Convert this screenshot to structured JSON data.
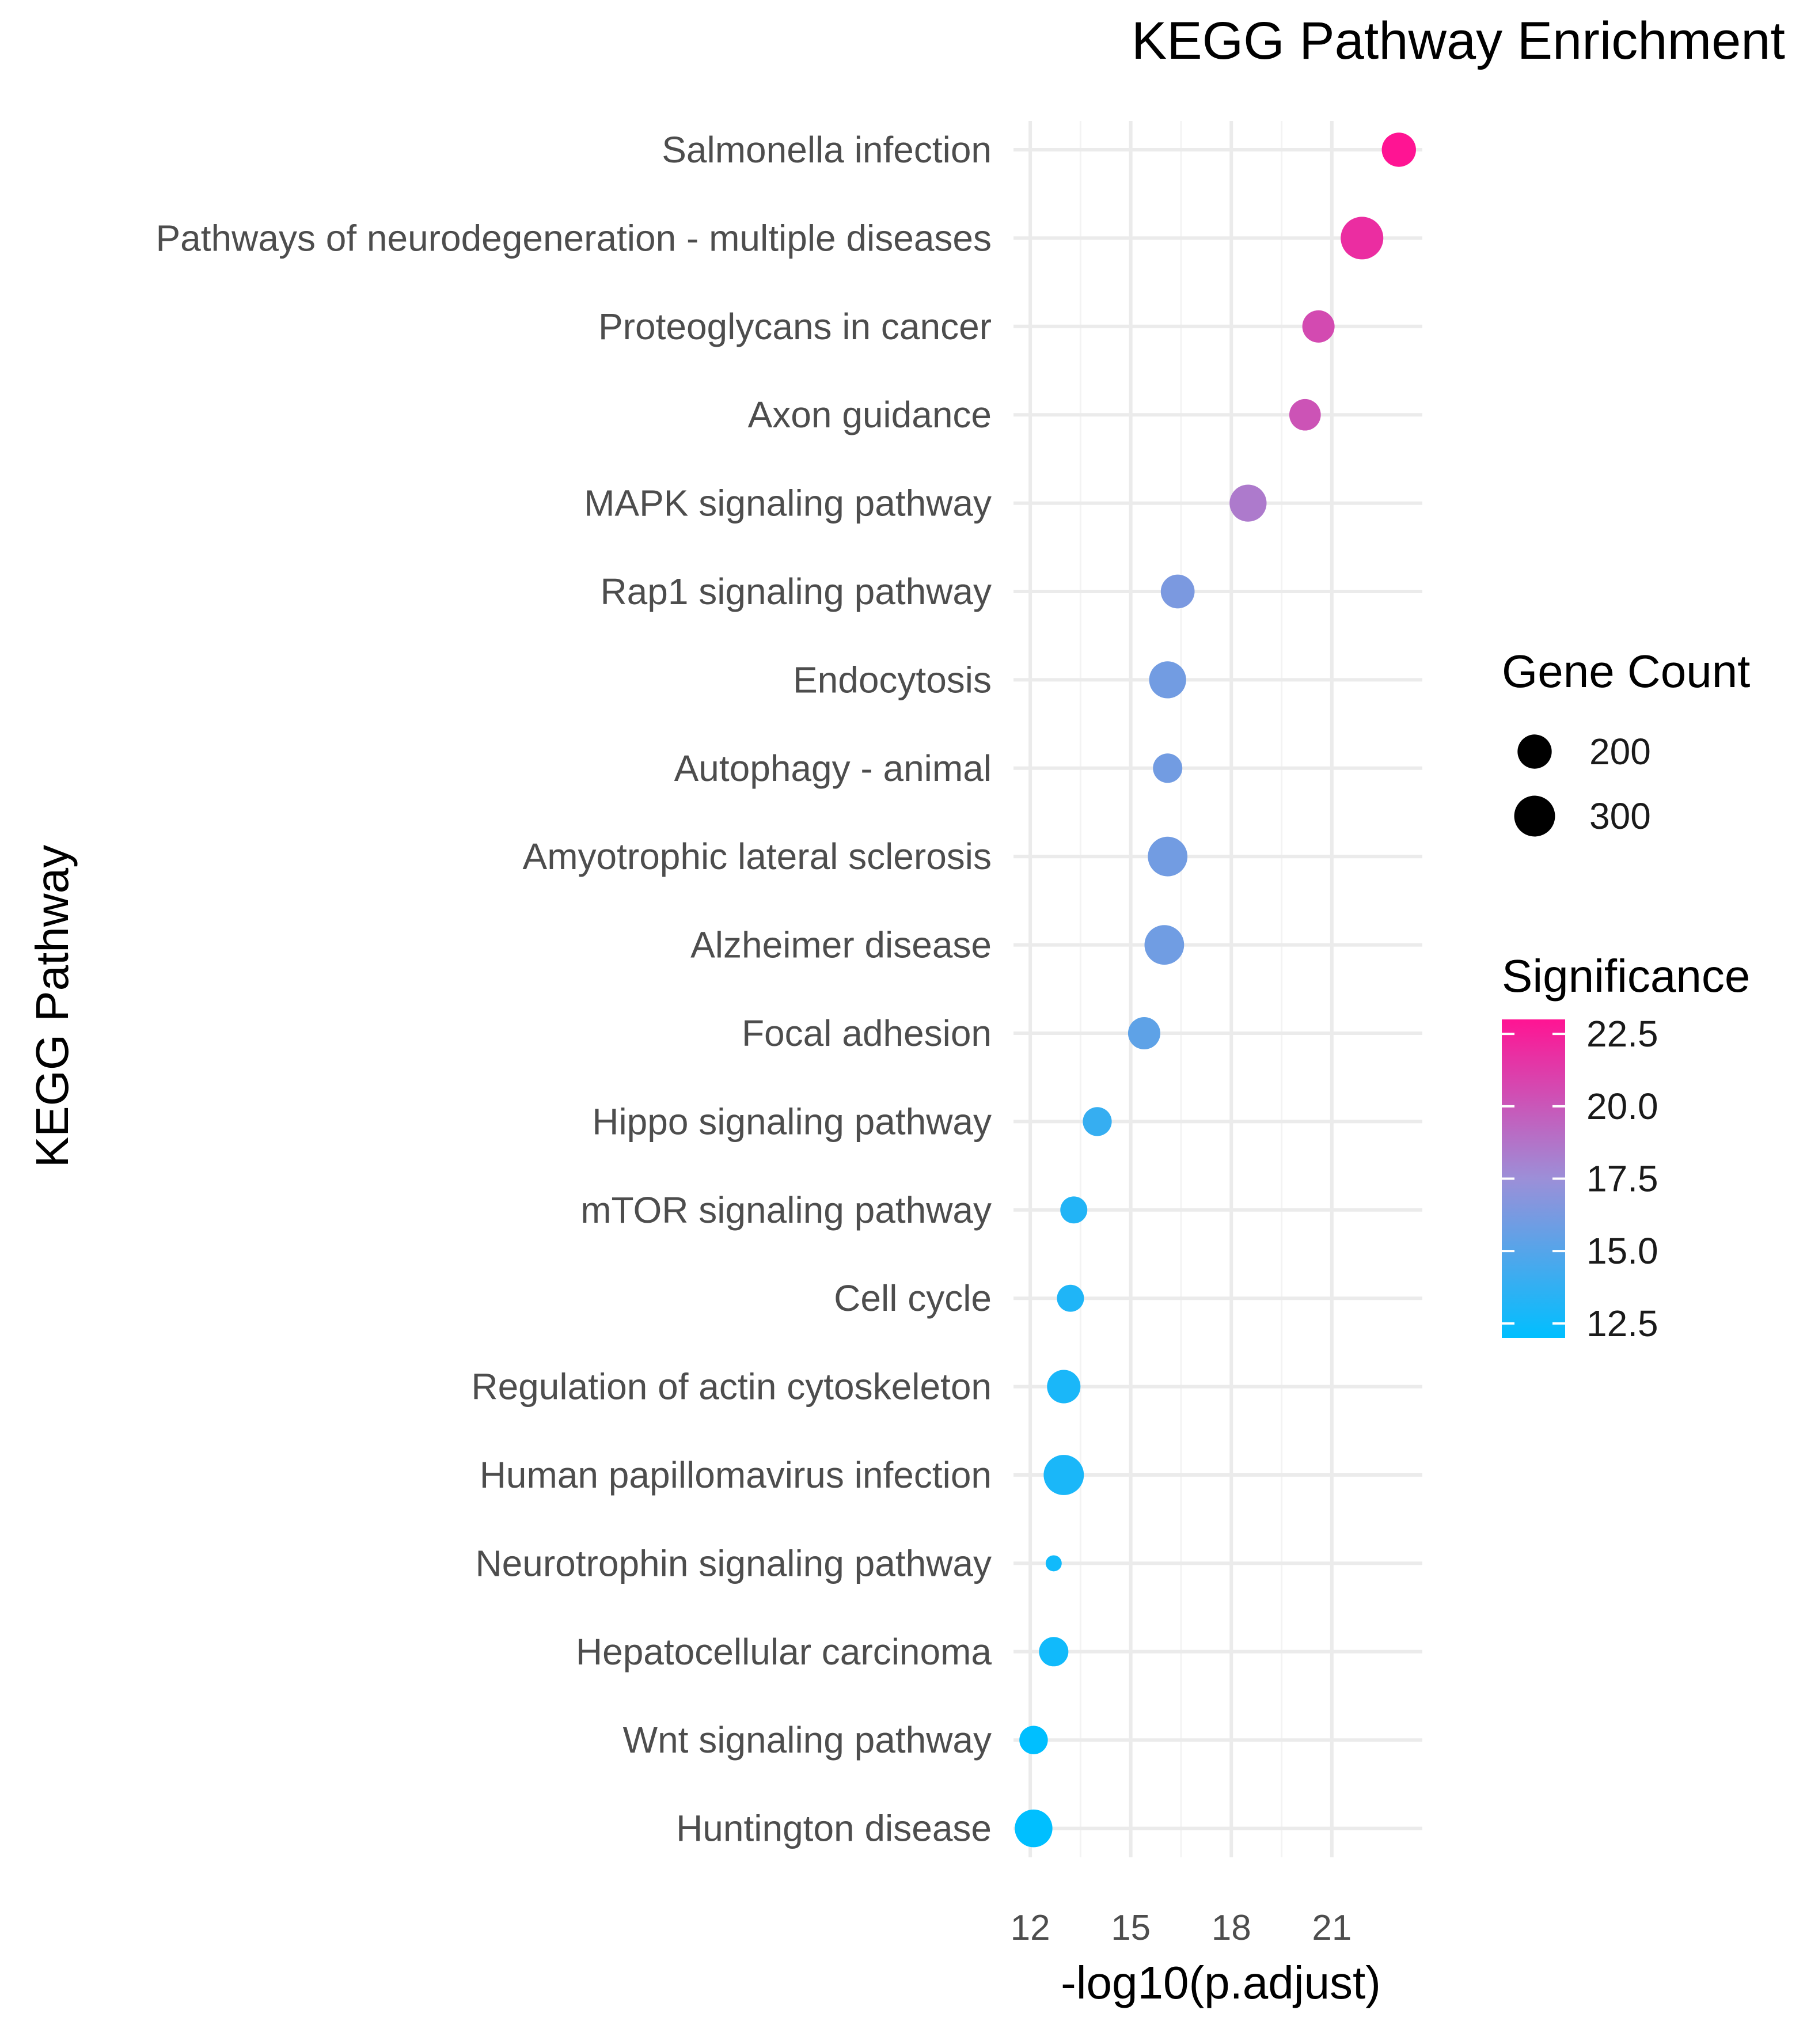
{
  "chart_data": {
    "type": "scatter",
    "title": "KEGG Pathway Enrichment",
    "xlabel": "-log10(p.adjust)",
    "ylabel": "KEGG Pathway",
    "xlim": [
      11.5,
      23.7
    ],
    "x_ticks": [
      12,
      15,
      18,
      21
    ],
    "grid": true,
    "categories": [
      "Salmonella infection",
      "Pathways of neurodegeneration - multiple diseases",
      "Proteoglycans in cancer",
      "Axon guidance",
      "MAPK signaling pathway",
      "Rap1 signaling pathway",
      "Endocytosis",
      "Autophagy - animal",
      "Amyotrophic lateral sclerosis",
      "Alzheimer disease",
      "Focal adhesion",
      "Hippo signaling pathway",
      "mTOR signaling pathway",
      "Cell cycle",
      "Regulation of actin cytoskeleton",
      "Human papillomavirus infection",
      "Neurotrophin signaling pathway",
      "Hepatocellular carcinoma",
      "Wnt signaling pathway",
      "Huntington disease"
    ],
    "x": [
      23.0,
      21.9,
      20.6,
      20.2,
      18.5,
      16.4,
      16.1,
      16.1,
      16.1,
      16.0,
      15.4,
      14.0,
      13.3,
      13.2,
      13.0,
      13.0,
      12.7,
      12.7,
      12.1,
      12.1
    ],
    "gene_count": [
      200,
      330,
      175,
      165,
      240,
      195,
      240,
      140,
      280,
      280,
      175,
      135,
      115,
      115,
      190,
      290,
      30,
      140,
      130,
      250
    ],
    "size_legend": {
      "title": "Gene Count",
      "values": [
        200,
        300
      ],
      "labels": [
        "200",
        "300"
      ]
    },
    "color_legend": {
      "title": "Significance",
      "ticks": [
        22.5,
        20.0,
        17.5,
        15.0,
        12.5
      ],
      "tick_labels": [
        "22.5",
        "20.0",
        "17.5",
        "15.0",
        "12.5"
      ],
      "range": [
        12.1,
        23.0
      ],
      "low_color": "#00bfff",
      "mid_color": "#9c8fd8",
      "high_color": "#ff1493"
    },
    "legend_position": "right"
  }
}
